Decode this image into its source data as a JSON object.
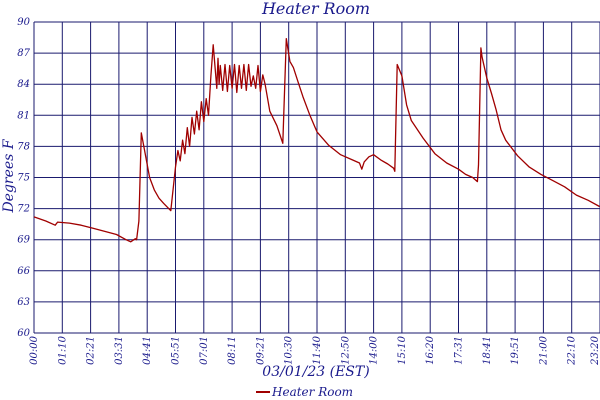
{
  "chart_data": {
    "type": "line",
    "title": "Heater Room",
    "xlabel": "03/01/23 (EST)",
    "ylabel": "Degrees F",
    "ylim": [
      60,
      90
    ],
    "yticks": [
      "60",
      "63",
      "66",
      "69",
      "72",
      "75",
      "78",
      "81",
      "84",
      "87",
      "90"
    ],
    "xticks": [
      "00:00",
      "01:10",
      "02:21",
      "03:31",
      "04:41",
      "05:51",
      "07:01",
      "08:11",
      "09:21",
      "10:30",
      "11:40",
      "12:50",
      "14:00",
      "15:10",
      "16:20",
      "17:31",
      "18:41",
      "19:51",
      "21:00",
      "22:10",
      "23:20"
    ],
    "grid": true,
    "legend_position": "bottom",
    "colors": {
      "series": "#a00000",
      "grid": "#1a1a6e",
      "text": "#1a1a8c"
    },
    "series": [
      {
        "name": "Heater Room",
        "x_hours": [
          0.0,
          0.5,
          0.9,
          1.0,
          1.5,
          2.0,
          2.5,
          3.0,
          3.5,
          3.9,
          4.1,
          4.3,
          4.35,
          4.45,
          4.55,
          4.7,
          4.9,
          5.1,
          5.3,
          5.5,
          5.8,
          6.0,
          6.1,
          6.2,
          6.3,
          6.4,
          6.5,
          6.6,
          6.7,
          6.8,
          6.9,
          7.0,
          7.1,
          7.2,
          7.3,
          7.4,
          7.5,
          7.6,
          7.7,
          7.75,
          7.8,
          7.85,
          7.9,
          8.0,
          8.1,
          8.2,
          8.3,
          8.4,
          8.5,
          8.6,
          8.7,
          8.8,
          8.9,
          9.0,
          9.1,
          9.2,
          9.3,
          9.4,
          9.5,
          9.6,
          9.7,
          9.8,
          10.0,
          10.3,
          10.55,
          10.7,
          10.85,
          11.0,
          11.2,
          11.4,
          11.7,
          12.0,
          12.5,
          13.0,
          13.5,
          13.8,
          13.9,
          14.0,
          14.2,
          14.4,
          14.7,
          15.0,
          15.25,
          15.3,
          15.4,
          15.6,
          15.8,
          16.0,
          16.5,
          17.0,
          17.5,
          18.0,
          18.3,
          18.6,
          18.8,
          18.85,
          18.95,
          19.0,
          19.2,
          19.4,
          19.6,
          19.8,
          20.0,
          20.5,
          21.0,
          21.5,
          22.0,
          22.5,
          23.0,
          23.5,
          23.98
        ],
        "values": [
          71.2,
          70.8,
          70.4,
          70.7,
          70.6,
          70.4,
          70.1,
          69.8,
          69.5,
          69.0,
          68.8,
          69.1,
          69.0,
          70.8,
          79.3,
          77.5,
          75.0,
          73.8,
          73.0,
          72.5,
          71.8,
          76.0,
          77.6,
          76.6,
          78.6,
          77.3,
          79.8,
          78.0,
          80.8,
          79.2,
          81.4,
          79.6,
          82.3,
          80.4,
          82.6,
          81.0,
          84.8,
          87.8,
          85.0,
          83.6,
          86.5,
          84.0,
          85.8,
          83.4,
          85.9,
          83.3,
          85.8,
          83.6,
          85.9,
          83.2,
          85.8,
          83.6,
          85.9,
          83.4,
          85.9,
          83.8,
          84.8,
          83.6,
          85.8,
          83.3,
          84.9,
          84.0,
          81.4,
          80.0,
          78.3,
          88.4,
          86.2,
          85.6,
          84.2,
          82.8,
          81.0,
          79.4,
          78.1,
          77.2,
          76.7,
          76.4,
          75.8,
          76.5,
          77.0,
          77.2,
          76.7,
          76.3,
          75.9,
          75.6,
          85.9,
          84.8,
          82.0,
          80.5,
          78.8,
          77.3,
          76.4,
          75.8,
          75.3,
          75.0,
          74.6,
          76.2,
          87.5,
          86.6,
          84.6,
          83.1,
          81.5,
          79.6,
          78.6,
          77.1,
          76.0,
          75.3,
          74.7,
          74.1,
          73.3,
          72.8,
          72.2
        ]
      }
    ]
  }
}
